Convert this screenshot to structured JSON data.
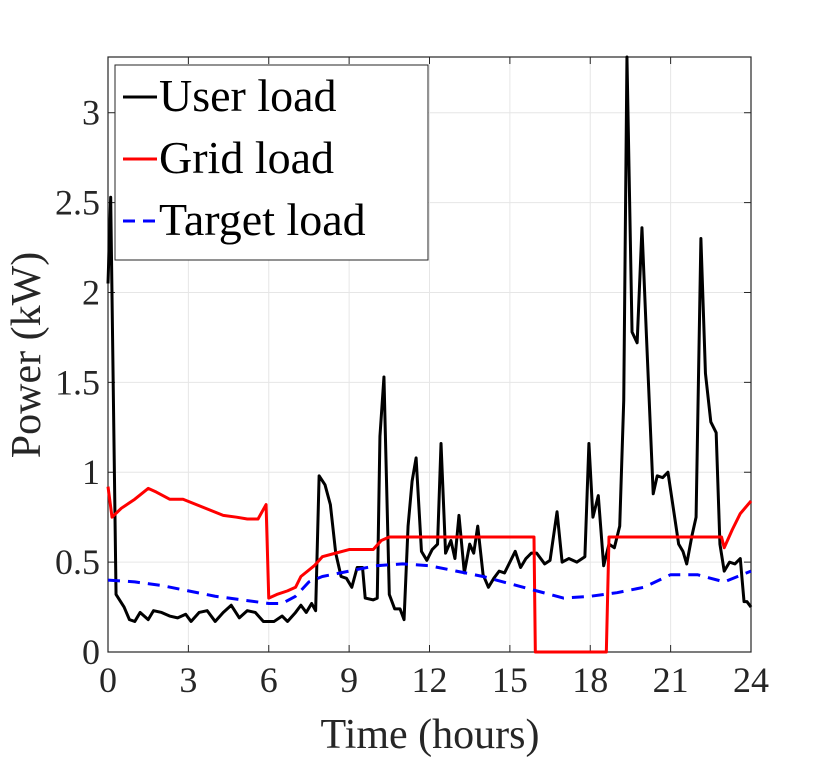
{
  "chart_data": {
    "type": "line",
    "xlabel": "Time (hours)",
    "ylabel": "Power (kW)",
    "xlim": [
      0,
      24
    ],
    "ylim": [
      0,
      3.31
    ],
    "xticks": [
      0,
      3,
      6,
      9,
      12,
      15,
      18,
      21,
      24
    ],
    "yticks": [
      0,
      0.5,
      1,
      1.5,
      2,
      2.5,
      3
    ],
    "grid": true,
    "legend": "upper left",
    "series": [
      {
        "name": "User load",
        "color": "#000000",
        "dash": "solid",
        "x": [
          0,
          0.1,
          0.3,
          0.6,
          0.8,
          1.0,
          1.2,
          1.5,
          1.7,
          2.0,
          2.3,
          2.6,
          2.9,
          3.1,
          3.4,
          3.7,
          4.0,
          4.3,
          4.6,
          4.9,
          5.2,
          5.5,
          5.8,
          6.2,
          6.5,
          6.7,
          7.0,
          7.2,
          7.4,
          7.6,
          7.75,
          7.88,
          8.1,
          8.3,
          8.5,
          8.7,
          8.9,
          9.1,
          9.3,
          9.5,
          9.6,
          9.9,
          10.05,
          10.15,
          10.3,
          10.5,
          10.7,
          10.9,
          11.05,
          11.2,
          11.35,
          11.5,
          11.7,
          11.9,
          12.1,
          12.3,
          12.43,
          12.6,
          12.8,
          12.95,
          13.1,
          13.3,
          13.5,
          13.65,
          13.8,
          14.0,
          14.2,
          14.4,
          14.6,
          14.8,
          15.0,
          15.2,
          15.4,
          15.6,
          15.8,
          16.0,
          16.3,
          16.5,
          16.76,
          16.95,
          17.2,
          17.5,
          17.8,
          17.95,
          18.1,
          18.3,
          18.5,
          18.7,
          18.9,
          19.1,
          19.25,
          19.37,
          19.56,
          19.75,
          19.93,
          20.1,
          20.35,
          20.5,
          20.7,
          20.9,
          21.3,
          21.46,
          21.6,
          21.8,
          21.95,
          22.13,
          22.3,
          22.5,
          22.7,
          22.84,
          23.0,
          23.2,
          23.4,
          23.6,
          23.74,
          23.85,
          24
        ],
        "values": [
          2.05,
          2.53,
          0.32,
          0.25,
          0.18,
          0.17,
          0.22,
          0.18,
          0.23,
          0.22,
          0.2,
          0.19,
          0.21,
          0.17,
          0.22,
          0.23,
          0.17,
          0.22,
          0.26,
          0.19,
          0.23,
          0.22,
          0.17,
          0.17,
          0.2,
          0.17,
          0.22,
          0.26,
          0.22,
          0.27,
          0.23,
          0.98,
          0.93,
          0.82,
          0.55,
          0.42,
          0.41,
          0.36,
          0.47,
          0.47,
          0.3,
          0.29,
          0.3,
          1.2,
          1.53,
          0.32,
          0.24,
          0.24,
          0.18,
          0.7,
          0.95,
          1.08,
          0.56,
          0.51,
          0.57,
          0.6,
          1.16,
          0.55,
          0.62,
          0.52,
          0.76,
          0.44,
          0.6,
          0.55,
          0.7,
          0.43,
          0.36,
          0.41,
          0.45,
          0.44,
          0.5,
          0.56,
          0.47,
          0.52,
          0.55,
          0.55,
          0.49,
          0.51,
          0.78,
          0.5,
          0.52,
          0.5,
          0.53,
          1.16,
          0.75,
          0.87,
          0.48,
          0.6,
          0.58,
          0.7,
          1.4,
          3.31,
          1.78,
          1.72,
          2.36,
          1.75,
          0.88,
          0.98,
          0.97,
          1.0,
          0.6,
          0.56,
          0.49,
          0.65,
          0.75,
          2.3,
          1.55,
          1.28,
          1.22,
          0.6,
          0.45,
          0.5,
          0.49,
          0.52,
          0.28,
          0.28,
          0.25
        ]
      },
      {
        "name": "Grid load",
        "color": "#ff0000",
        "dash": "solid",
        "x": [
          0,
          0.15,
          0.5,
          1.0,
          1.5,
          1.8,
          2.3,
          2.8,
          3.3,
          3.8,
          4.3,
          4.8,
          5.2,
          5.6,
          5.9,
          6.0,
          6.3,
          6.7,
          7.0,
          7.2,
          7.7,
          8.0,
          8.5,
          9.0,
          9.9,
          10.2,
          10.5,
          15.9,
          15.95,
          18.6,
          18.7,
          22.9,
          23.0,
          23.3,
          23.6,
          24
        ],
        "values": [
          0.92,
          0.75,
          0.8,
          0.85,
          0.91,
          0.89,
          0.85,
          0.85,
          0.82,
          0.79,
          0.76,
          0.75,
          0.74,
          0.74,
          0.82,
          0.3,
          0.32,
          0.34,
          0.36,
          0.42,
          0.48,
          0.53,
          0.55,
          0.57,
          0.57,
          0.62,
          0.64,
          0.64,
          0,
          0,
          0.64,
          0.64,
          0.58,
          0.68,
          0.77,
          0.84
        ]
      },
      {
        "name": "Target load",
        "color": "#0000ff",
        "dash": "dashed",
        "x": [
          0,
          1,
          2,
          3,
          4,
          5,
          6,
          6.5,
          7,
          7.5,
          8,
          9,
          10,
          11,
          12,
          13,
          14,
          15,
          16,
          17,
          18,
          19,
          20,
          21,
          22,
          23,
          24
        ],
        "values": [
          0.4,
          0.39,
          0.37,
          0.34,
          0.31,
          0.29,
          0.27,
          0.27,
          0.31,
          0.39,
          0.42,
          0.45,
          0.48,
          0.49,
          0.48,
          0.45,
          0.42,
          0.38,
          0.34,
          0.3,
          0.31,
          0.33,
          0.36,
          0.43,
          0.43,
          0.39,
          0.45
        ]
      }
    ]
  }
}
